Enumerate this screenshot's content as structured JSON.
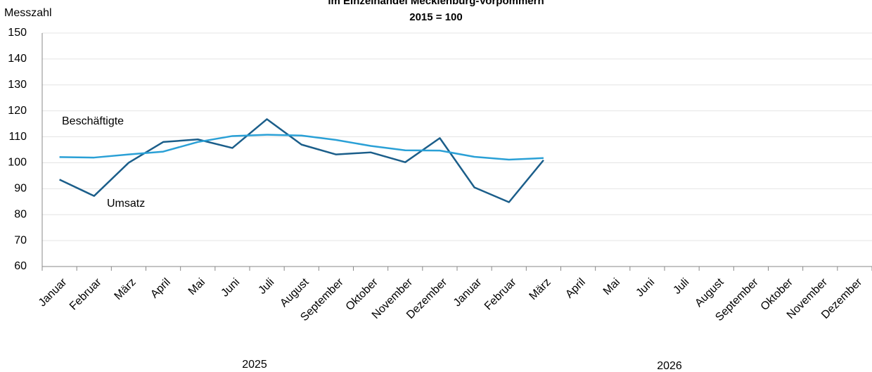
{
  "chart_data": {
    "type": "line",
    "title": "im Einzelhandel Mecklenburg-Vorpommern",
    "subtitle": "2015 = 100",
    "y_axis_label": "Messzahl",
    "categories": [
      "Januar",
      "Februar",
      "März",
      "April",
      "Mai",
      "Juni",
      "Juli",
      "August",
      "September",
      "Oktober",
      "November",
      "Dezember",
      "Januar",
      "Februar",
      "März",
      "April",
      "Mai",
      "Juni",
      "Juli",
      "August",
      "September",
      "Oktober",
      "November",
      "Dezember"
    ],
    "year_labels": [
      "2025",
      "2026"
    ],
    "series": [
      {
        "name": "Umsatz",
        "color": "#1b5e8a",
        "values": [
          93.5,
          87.2,
          100,
          108,
          109,
          105.7,
          116.8,
          107,
          103.2,
          104,
          100.2,
          109.5,
          90.5,
          84.8,
          101,
          null,
          null,
          null,
          null,
          null,
          null,
          null,
          null,
          null
        ]
      },
      {
        "name": "Beschäftigte",
        "color": "#2aa0d6",
        "values": [
          102.2,
          102,
          103.2,
          104.3,
          108,
          110.3,
          110.8,
          110.5,
          108.8,
          106.5,
          104.8,
          104.7,
          102.3,
          101.2,
          101.8,
          null,
          null,
          null,
          null,
          null,
          null,
          null,
          null,
          null
        ]
      }
    ],
    "ylim": [
      60,
      150
    ],
    "yticks": [
      60,
      70,
      80,
      90,
      100,
      110,
      120,
      130,
      140,
      150
    ],
    "grid": true
  }
}
